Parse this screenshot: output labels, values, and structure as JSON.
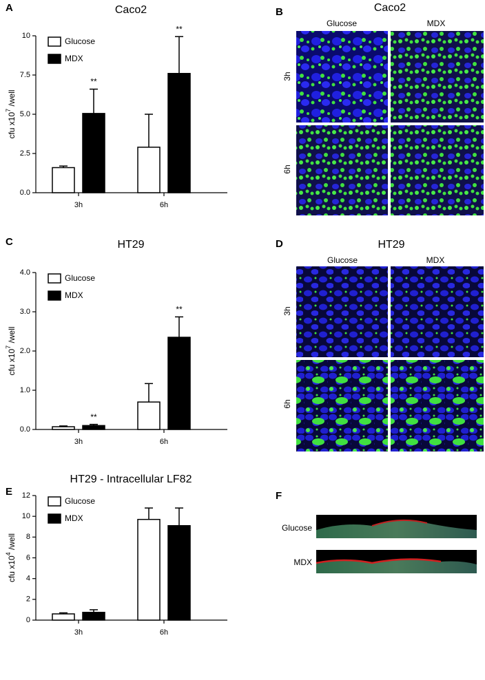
{
  "chart_data": [
    {
      "type": "bar",
      "panel_label": "A",
      "title": "Caco2",
      "ylabel": [
        "cfu x10",
        "7",
        " /well"
      ],
      "categories": [
        "3h",
        "6h"
      ],
      "series": [
        {
          "name": "Glucose",
          "color": "#ffffff",
          "values": [
            1.6,
            2.9
          ],
          "errors": [
            0.1,
            2.1
          ]
        },
        {
          "name": "MDX",
          "color": "#000000",
          "values": [
            5.05,
            7.6
          ],
          "errors": [
            1.55,
            2.35
          ],
          "annotations": [
            "**",
            "**"
          ]
        }
      ],
      "ylim": [
        0,
        10
      ],
      "yticks": [
        {
          "value": 0,
          "label": "0.0"
        },
        2.5,
        {
          "value": 5,
          "label": "5.0"
        },
        7.5,
        10
      ],
      "legend": "upper left"
    },
    {
      "type": "bar",
      "panel_label": "C",
      "title": "HT29",
      "ylabel": [
        "cfu x10",
        "7",
        " /well"
      ],
      "categories": [
        "3h",
        "6h"
      ],
      "series": [
        {
          "name": "Glucose",
          "color": "#ffffff",
          "values": [
            0.07,
            0.7
          ],
          "errors": [
            0.02,
            0.47
          ]
        },
        {
          "name": "MDX",
          "color": "#000000",
          "values": [
            0.1,
            2.35
          ],
          "errors": [
            0.03,
            0.52
          ],
          "annotations": [
            "**",
            "**"
          ]
        }
      ],
      "ylim": [
        0,
        4
      ],
      "yticks": [
        {
          "value": 0,
          "label": "0.0"
        },
        {
          "value": 1,
          "label": "1.0"
        },
        {
          "value": 2,
          "label": "2.0"
        },
        {
          "value": 3,
          "label": "3.0"
        },
        {
          "value": 4,
          "label": "4.0"
        }
      ],
      "legend": "upper left"
    },
    {
      "type": "bar",
      "panel_label": "E",
      "title": "HT29 - Intracellular LF82",
      "ylabel": [
        "cfu x10",
        "4",
        " /well"
      ],
      "categories": [
        "3h",
        "6h"
      ],
      "series": [
        {
          "name": "Glucose",
          "color": "#ffffff",
          "values": [
            0.6,
            9.7
          ],
          "errors": [
            0.1,
            1.1
          ]
        },
        {
          "name": "MDX",
          "color": "#000000",
          "values": [
            0.75,
            9.1
          ],
          "errors": [
            0.25,
            1.7
          ]
        }
      ],
      "ylim": [
        0,
        12
      ],
      "yticks": [
        0,
        2,
        4,
        6,
        8,
        10,
        12
      ],
      "legend": "upper left"
    }
  ],
  "image_panels": [
    {
      "panel_label": "B",
      "title": "Caco2",
      "columns": [
        "Glucose",
        "MDX"
      ],
      "rows": [
        "3h",
        "6h"
      ]
    },
    {
      "panel_label": "D",
      "title": "HT29",
      "columns": [
        "Glucose",
        "MDX"
      ],
      "rows": [
        "3h",
        "6h"
      ]
    }
  ],
  "strip_panel": {
    "panel_label": "F",
    "rows": [
      "Glucose",
      "MDX"
    ]
  }
}
